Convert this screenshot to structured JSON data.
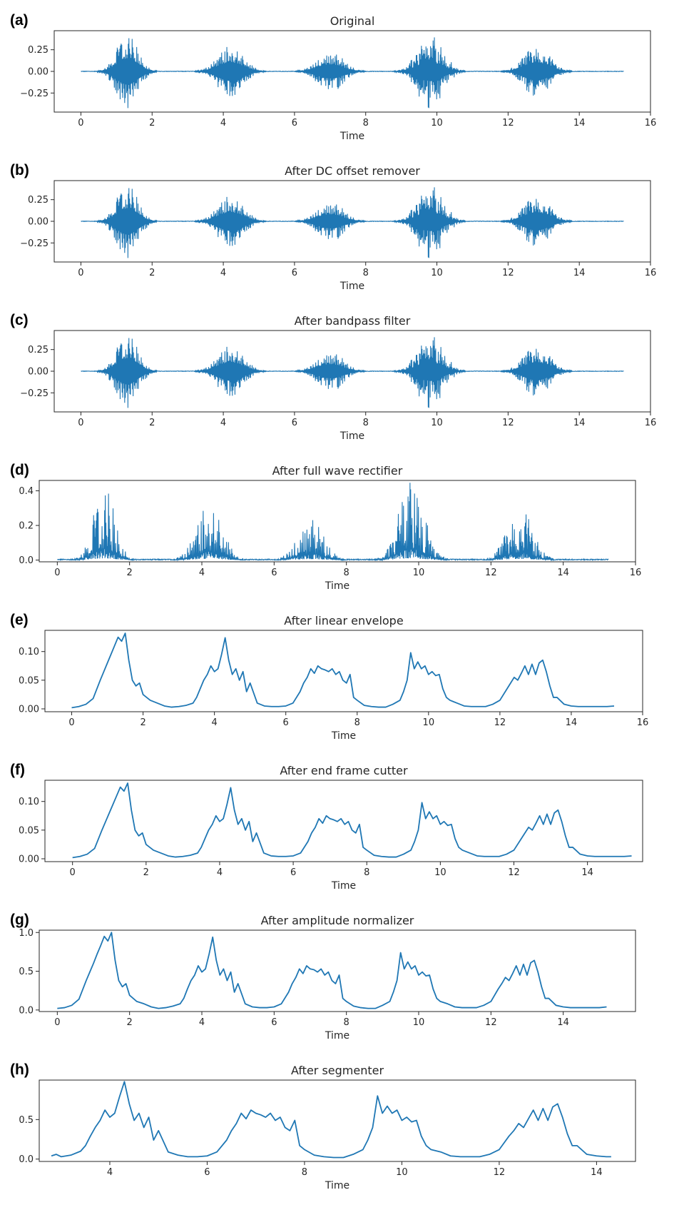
{
  "figure": {
    "colors": {
      "line": "#1f77b4",
      "axes": "#262626",
      "background": "#ffffff"
    }
  },
  "chart_data": [
    {
      "type": "line",
      "label": "(a)",
      "title": "Original",
      "xlabel": "Time",
      "xlim": [
        -0.75,
        16
      ],
      "ylim": [
        -0.47,
        0.47
      ],
      "xticks": [
        0,
        2,
        4,
        6,
        8,
        10,
        12,
        14,
        16
      ],
      "xtick_labels": [
        "0",
        "2",
        "4",
        "6",
        "8",
        "10",
        "12",
        "14",
        "16"
      ],
      "yticks": [
        -0.25,
        0,
        0.25
      ],
      "ytick_labels": [
        "−0.25",
        "0.00",
        "0.25"
      ],
      "signal": "waveform",
      "x_range": [
        0,
        15.25
      ],
      "bursts": [
        {
          "center": 1.3,
          "width": 0.5,
          "peak": 0.43,
          "trough": -0.43
        },
        {
          "center": 4.2,
          "width": 0.6,
          "peak": 0.3,
          "trough": -0.31
        },
        {
          "center": 7.0,
          "width": 0.6,
          "peak": 0.23,
          "trough": -0.25
        },
        {
          "center": 9.8,
          "width": 0.6,
          "peak": 0.45,
          "trough": -0.31
        },
        {
          "center": 12.8,
          "width": 0.6,
          "peak": 0.3,
          "trough": -0.3
        }
      ]
    },
    {
      "type": "line",
      "label": "(b)",
      "title": "After DC offset remover",
      "xlabel": "Time",
      "xlim": [
        -0.75,
        16
      ],
      "ylim": [
        -0.47,
        0.47
      ],
      "xticks": [
        0,
        2,
        4,
        6,
        8,
        10,
        12,
        14,
        16
      ],
      "xtick_labels": [
        "0",
        "2",
        "4",
        "6",
        "8",
        "10",
        "12",
        "14",
        "16"
      ],
      "yticks": [
        -0.25,
        0,
        0.25
      ],
      "ytick_labels": [
        "−0.25",
        "0.00",
        "0.25"
      ],
      "signal": "waveform",
      "x_range": [
        0,
        15.25
      ],
      "bursts": [
        {
          "center": 1.3,
          "width": 0.5,
          "peak": 0.43,
          "trough": -0.43
        },
        {
          "center": 4.2,
          "width": 0.6,
          "peak": 0.3,
          "trough": -0.31
        },
        {
          "center": 7.0,
          "width": 0.6,
          "peak": 0.23,
          "trough": -0.25
        },
        {
          "center": 9.8,
          "width": 0.6,
          "peak": 0.45,
          "trough": -0.31
        },
        {
          "center": 12.8,
          "width": 0.6,
          "peak": 0.3,
          "trough": -0.3
        }
      ]
    },
    {
      "type": "line",
      "label": "(c)",
      "title": "After bandpass filter",
      "xlabel": "Time",
      "xlim": [
        -0.75,
        16
      ],
      "ylim": [
        -0.47,
        0.47
      ],
      "xticks": [
        0,
        2,
        4,
        6,
        8,
        10,
        12,
        14,
        16
      ],
      "xtick_labels": [
        "0",
        "2",
        "4",
        "6",
        "8",
        "10",
        "12",
        "14",
        "16"
      ],
      "yticks": [
        -0.25,
        0,
        0.25
      ],
      "ytick_labels": [
        "−0.25",
        "0.00",
        "0.25"
      ],
      "signal": "waveform",
      "x_range": [
        0,
        15.25
      ],
      "bursts": [
        {
          "center": 1.3,
          "width": 0.5,
          "peak": 0.43,
          "trough": -0.43
        },
        {
          "center": 4.2,
          "width": 0.6,
          "peak": 0.3,
          "trough": -0.31
        },
        {
          "center": 7.0,
          "width": 0.6,
          "peak": 0.23,
          "trough": -0.25
        },
        {
          "center": 9.8,
          "width": 0.6,
          "peak": 0.45,
          "trough": -0.31
        },
        {
          "center": 12.8,
          "width": 0.6,
          "peak": 0.3,
          "trough": -0.3
        }
      ]
    },
    {
      "type": "line",
      "label": "(d)",
      "title": "After full wave rectifier",
      "xlabel": "Time",
      "xlim": [
        -0.5,
        16
      ],
      "ylim": [
        -0.01,
        0.46
      ],
      "xticks": [
        0,
        2,
        4,
        6,
        8,
        10,
        12,
        14,
        16
      ],
      "xtick_labels": [
        "0",
        "2",
        "4",
        "6",
        "8",
        "10",
        "12",
        "14",
        "16"
      ],
      "yticks": [
        0,
        0.2,
        0.4
      ],
      "ytick_labels": [
        "0.0",
        "0.2",
        "0.4"
      ],
      "signal": "rectified",
      "x_range": [
        0,
        15.25
      ],
      "bursts": [
        {
          "center": 1.3,
          "width": 0.5,
          "peak": 0.43
        },
        {
          "center": 4.2,
          "width": 0.6,
          "peak": 0.34
        },
        {
          "center": 7.0,
          "width": 0.6,
          "peak": 0.25
        },
        {
          "center": 9.8,
          "width": 0.6,
          "peak": 0.45
        },
        {
          "center": 12.8,
          "width": 0.6,
          "peak": 0.3
        }
      ]
    },
    {
      "type": "line",
      "label": "(e)",
      "title": "After linear envelope",
      "xlabel": "Time",
      "xlim": [
        -0.75,
        16
      ],
      "ylim": [
        -0.005,
        0.137
      ],
      "xticks": [
        0,
        2,
        4,
        6,
        8,
        10,
        12,
        14,
        16
      ],
      "xtick_labels": [
        "0",
        "2",
        "4",
        "6",
        "8",
        "10",
        "12",
        "14",
        "16"
      ],
      "yticks": [
        0,
        0.05,
        0.1
      ],
      "ytick_labels": [
        "0.00",
        "0.05",
        "0.10"
      ],
      "x": [
        0.0,
        0.2,
        0.4,
        0.6,
        0.8,
        0.9,
        1.0,
        1.1,
        1.2,
        1.3,
        1.4,
        1.5,
        1.6,
        1.7,
        1.8,
        1.9,
        2.0,
        2.2,
        2.4,
        2.6,
        2.8,
        3.0,
        3.2,
        3.4,
        3.5,
        3.6,
        3.7,
        3.8,
        3.9,
        4.0,
        4.1,
        4.2,
        4.3,
        4.4,
        4.5,
        4.6,
        4.7,
        4.8,
        4.9,
        5.0,
        5.2,
        5.4,
        5.6,
        5.8,
        6.0,
        6.2,
        6.4,
        6.5,
        6.6,
        6.7,
        6.8,
        6.9,
        7.0,
        7.1,
        7.2,
        7.3,
        7.4,
        7.5,
        7.6,
        7.7,
        7.8,
        7.9,
        8.0,
        8.2,
        8.4,
        8.6,
        8.8,
        9.0,
        9.2,
        9.3,
        9.4,
        9.5,
        9.6,
        9.7,
        9.8,
        9.9,
        10.0,
        10.1,
        10.2,
        10.3,
        10.4,
        10.5,
        10.6,
        10.8,
        11.0,
        11.2,
        11.4,
        11.6,
        11.8,
        12.0,
        12.2,
        12.3,
        12.4,
        12.5,
        12.6,
        12.7,
        12.8,
        12.9,
        13.0,
        13.1,
        13.2,
        13.3,
        13.4,
        13.5,
        13.6,
        13.8,
        14.0,
        14.2,
        14.5,
        14.8,
        15.0,
        15.2
      ],
      "y": [
        0.002,
        0.004,
        0.008,
        0.018,
        0.05,
        0.065,
        0.08,
        0.095,
        0.11,
        0.125,
        0.118,
        0.132,
        0.085,
        0.05,
        0.04,
        0.045,
        0.025,
        0.015,
        0.01,
        0.005,
        0.003,
        0.004,
        0.006,
        0.01,
        0.02,
        0.035,
        0.05,
        0.06,
        0.075,
        0.065,
        0.07,
        0.095,
        0.124,
        0.085,
        0.06,
        0.07,
        0.05,
        0.065,
        0.03,
        0.045,
        0.01,
        0.005,
        0.004,
        0.004,
        0.005,
        0.01,
        0.03,
        0.045,
        0.055,
        0.07,
        0.062,
        0.075,
        0.07,
        0.068,
        0.065,
        0.07,
        0.06,
        0.065,
        0.05,
        0.045,
        0.06,
        0.02,
        0.015,
        0.006,
        0.004,
        0.003,
        0.003,
        0.008,
        0.015,
        0.03,
        0.05,
        0.098,
        0.07,
        0.082,
        0.07,
        0.075,
        0.06,
        0.065,
        0.058,
        0.06,
        0.035,
        0.02,
        0.015,
        0.01,
        0.005,
        0.004,
        0.004,
        0.004,
        0.008,
        0.015,
        0.035,
        0.045,
        0.055,
        0.05,
        0.062,
        0.075,
        0.06,
        0.078,
        0.06,
        0.08,
        0.085,
        0.065,
        0.04,
        0.02,
        0.02,
        0.008,
        0.005,
        0.004,
        0.004,
        0.004,
        0.004,
        0.005
      ]
    },
    {
      "type": "line",
      "label": "(f)",
      "title": "After end frame cutter",
      "xlabel": "Time",
      "xlim": [
        -0.75,
        15.5
      ],
      "ylim": [
        -0.005,
        0.137
      ],
      "xticks": [
        0,
        2,
        4,
        6,
        8,
        10,
        12,
        14
      ],
      "xtick_labels": [
        "0",
        "2",
        "4",
        "6",
        "8",
        "10",
        "12",
        "14"
      ],
      "yticks": [
        0,
        0.05,
        0.1
      ],
      "ytick_labels": [
        "0.00",
        "0.05",
        "0.10"
      ],
      "x": [
        0.0,
        0.2,
        0.4,
        0.6,
        0.8,
        0.9,
        1.0,
        1.1,
        1.2,
        1.3,
        1.4,
        1.5,
        1.6,
        1.7,
        1.8,
        1.9,
        2.0,
        2.2,
        2.4,
        2.6,
        2.8,
        3.0,
        3.2,
        3.4,
        3.5,
        3.6,
        3.7,
        3.8,
        3.9,
        4.0,
        4.1,
        4.2,
        4.3,
        4.4,
        4.5,
        4.6,
        4.7,
        4.8,
        4.9,
        5.0,
        5.2,
        5.4,
        5.6,
        5.8,
        6.0,
        6.2,
        6.4,
        6.5,
        6.6,
        6.7,
        6.8,
        6.9,
        7.0,
        7.1,
        7.2,
        7.3,
        7.4,
        7.5,
        7.6,
        7.7,
        7.8,
        7.9,
        8.0,
        8.2,
        8.4,
        8.6,
        8.8,
        9.0,
        9.2,
        9.3,
        9.4,
        9.5,
        9.6,
        9.7,
        9.8,
        9.9,
        10.0,
        10.1,
        10.2,
        10.3,
        10.4,
        10.5,
        10.6,
        10.8,
        11.0,
        11.2,
        11.4,
        11.6,
        11.8,
        12.0,
        12.2,
        12.3,
        12.4,
        12.5,
        12.6,
        12.7,
        12.8,
        12.9,
        13.0,
        13.1,
        13.2,
        13.3,
        13.4,
        13.5,
        13.6,
        13.8,
        14.0,
        14.2,
        14.5,
        14.8,
        15.0,
        15.2
      ],
      "y": [
        0.002,
        0.004,
        0.008,
        0.018,
        0.05,
        0.065,
        0.08,
        0.095,
        0.11,
        0.125,
        0.118,
        0.132,
        0.085,
        0.05,
        0.04,
        0.045,
        0.025,
        0.015,
        0.01,
        0.005,
        0.003,
        0.004,
        0.006,
        0.01,
        0.02,
        0.035,
        0.05,
        0.06,
        0.075,
        0.065,
        0.07,
        0.095,
        0.124,
        0.085,
        0.06,
        0.07,
        0.05,
        0.065,
        0.03,
        0.045,
        0.01,
        0.005,
        0.004,
        0.004,
        0.005,
        0.01,
        0.03,
        0.045,
        0.055,
        0.07,
        0.062,
        0.075,
        0.07,
        0.068,
        0.065,
        0.07,
        0.06,
        0.065,
        0.05,
        0.045,
        0.06,
        0.02,
        0.015,
        0.006,
        0.004,
        0.003,
        0.003,
        0.008,
        0.015,
        0.03,
        0.05,
        0.098,
        0.07,
        0.082,
        0.07,
        0.075,
        0.06,
        0.065,
        0.058,
        0.06,
        0.035,
        0.02,
        0.015,
        0.01,
        0.005,
        0.004,
        0.004,
        0.004,
        0.008,
        0.015,
        0.035,
        0.045,
        0.055,
        0.05,
        0.062,
        0.075,
        0.06,
        0.078,
        0.06,
        0.08,
        0.085,
        0.065,
        0.04,
        0.02,
        0.02,
        0.008,
        0.005,
        0.004,
        0.004,
        0.004,
        0.004,
        0.005
      ]
    },
    {
      "type": "line",
      "label": "(g)",
      "title": "After amplitude normalizer",
      "xlabel": "Time",
      "xlim": [
        -0.5,
        16
      ],
      "ylim": [
        -0.02,
        1.03
      ],
      "xticks": [
        0,
        2,
        4,
        6,
        8,
        10,
        12,
        14
      ],
      "xtick_labels": [
        "0",
        "2",
        "4",
        "6",
        "8",
        "10",
        "12",
        "14"
      ],
      "yticks": [
        0,
        0.5,
        1.0
      ],
      "ytick_labels": [
        "0.0",
        "0.5",
        "1.0"
      ],
      "x": [
        0.0,
        0.2,
        0.4,
        0.6,
        0.8,
        0.9,
        1.0,
        1.1,
        1.2,
        1.3,
        1.4,
        1.5,
        1.6,
        1.7,
        1.8,
        1.9,
        2.0,
        2.2,
        2.4,
        2.6,
        2.8,
        3.0,
        3.2,
        3.4,
        3.5,
        3.6,
        3.7,
        3.8,
        3.9,
        4.0,
        4.1,
        4.2,
        4.3,
        4.4,
        4.5,
        4.6,
        4.7,
        4.8,
        4.9,
        5.0,
        5.2,
        5.4,
        5.6,
        5.8,
        6.0,
        6.2,
        6.4,
        6.5,
        6.6,
        6.7,
        6.8,
        6.9,
        7.0,
        7.1,
        7.2,
        7.3,
        7.4,
        7.5,
        7.6,
        7.7,
        7.8,
        7.9,
        8.0,
        8.2,
        8.4,
        8.6,
        8.8,
        9.0,
        9.2,
        9.3,
        9.4,
        9.5,
        9.6,
        9.7,
        9.8,
        9.9,
        10.0,
        10.1,
        10.2,
        10.3,
        10.4,
        10.5,
        10.6,
        10.8,
        11.0,
        11.2,
        11.4,
        11.6,
        11.8,
        12.0,
        12.2,
        12.3,
        12.4,
        12.5,
        12.6,
        12.7,
        12.8,
        12.9,
        13.0,
        13.1,
        13.2,
        13.3,
        13.4,
        13.5,
        13.6,
        13.8,
        14.0,
        14.2,
        14.5,
        14.8,
        15.0,
        15.2
      ],
      "y": [
        0.02,
        0.03,
        0.06,
        0.14,
        0.38,
        0.49,
        0.6,
        0.72,
        0.83,
        0.95,
        0.89,
        1.0,
        0.64,
        0.38,
        0.3,
        0.34,
        0.19,
        0.11,
        0.08,
        0.04,
        0.02,
        0.03,
        0.05,
        0.08,
        0.15,
        0.27,
        0.38,
        0.45,
        0.57,
        0.49,
        0.53,
        0.72,
        0.94,
        0.64,
        0.45,
        0.53,
        0.38,
        0.49,
        0.23,
        0.34,
        0.08,
        0.04,
        0.03,
        0.03,
        0.04,
        0.08,
        0.23,
        0.34,
        0.42,
        0.53,
        0.47,
        0.57,
        0.53,
        0.52,
        0.49,
        0.53,
        0.45,
        0.49,
        0.38,
        0.34,
        0.45,
        0.15,
        0.11,
        0.05,
        0.03,
        0.02,
        0.02,
        0.06,
        0.11,
        0.23,
        0.38,
        0.74,
        0.53,
        0.62,
        0.53,
        0.57,
        0.45,
        0.49,
        0.44,
        0.45,
        0.27,
        0.15,
        0.11,
        0.08,
        0.04,
        0.03,
        0.03,
        0.03,
        0.06,
        0.11,
        0.27,
        0.34,
        0.42,
        0.38,
        0.47,
        0.57,
        0.45,
        0.59,
        0.45,
        0.61,
        0.64,
        0.49,
        0.3,
        0.15,
        0.15,
        0.06,
        0.04,
        0.03,
        0.03,
        0.03,
        0.03,
        0.04
      ]
    },
    {
      "type": "line",
      "label": "(h)",
      "title": "After segmenter",
      "xlabel": "Time",
      "xlim": [
        2.55,
        14.8
      ],
      "ylim": [
        -0.03,
        1.0
      ],
      "xticks": [
        4,
        6,
        8,
        10,
        12,
        14
      ],
      "xtick_labels": [
        "4",
        "6",
        "8",
        "10",
        "12",
        "14"
      ],
      "yticks": [
        0,
        0.5
      ],
      "ytick_labels": [
        "0.0",
        "0.5"
      ],
      "x": [
        2.8,
        2.9,
        3.0,
        3.2,
        3.4,
        3.5,
        3.6,
        3.7,
        3.8,
        3.9,
        4.0,
        4.1,
        4.2,
        4.3,
        4.4,
        4.5,
        4.6,
        4.7,
        4.8,
        4.9,
        5.0,
        5.2,
        5.4,
        5.6,
        5.8,
        6.0,
        6.2,
        6.4,
        6.5,
        6.6,
        6.7,
        6.8,
        6.9,
        7.0,
        7.1,
        7.2,
        7.3,
        7.4,
        7.5,
        7.6,
        7.7,
        7.8,
        7.9,
        8.0,
        8.2,
        8.4,
        8.6,
        8.8,
        9.0,
        9.2,
        9.3,
        9.4,
        9.5,
        9.6,
        9.7,
        9.8,
        9.9,
        10.0,
        10.1,
        10.2,
        10.3,
        10.4,
        10.5,
        10.6,
        10.8,
        11.0,
        11.2,
        11.4,
        11.6,
        11.8,
        12.0,
        12.2,
        12.3,
        12.4,
        12.5,
        12.6,
        12.7,
        12.8,
        12.9,
        13.0,
        13.1,
        13.2,
        13.3,
        13.4,
        13.5,
        13.6,
        13.8,
        14.0,
        14.2,
        14.3
      ],
      "y": [
        0.04,
        0.06,
        0.03,
        0.05,
        0.1,
        0.17,
        0.29,
        0.4,
        0.49,
        0.62,
        0.53,
        0.58,
        0.79,
        0.98,
        0.7,
        0.49,
        0.58,
        0.4,
        0.53,
        0.24,
        0.36,
        0.09,
        0.05,
        0.03,
        0.03,
        0.04,
        0.09,
        0.24,
        0.36,
        0.45,
        0.58,
        0.51,
        0.62,
        0.58,
        0.56,
        0.53,
        0.58,
        0.49,
        0.53,
        0.4,
        0.36,
        0.49,
        0.17,
        0.12,
        0.05,
        0.03,
        0.02,
        0.02,
        0.06,
        0.12,
        0.24,
        0.4,
        0.8,
        0.58,
        0.67,
        0.58,
        0.62,
        0.49,
        0.53,
        0.47,
        0.49,
        0.29,
        0.17,
        0.12,
        0.09,
        0.04,
        0.03,
        0.03,
        0.03,
        0.06,
        0.12,
        0.29,
        0.36,
        0.45,
        0.4,
        0.51,
        0.62,
        0.49,
        0.64,
        0.49,
        0.66,
        0.7,
        0.53,
        0.32,
        0.17,
        0.17,
        0.06,
        0.04,
        0.03,
        0.03
      ]
    }
  ]
}
